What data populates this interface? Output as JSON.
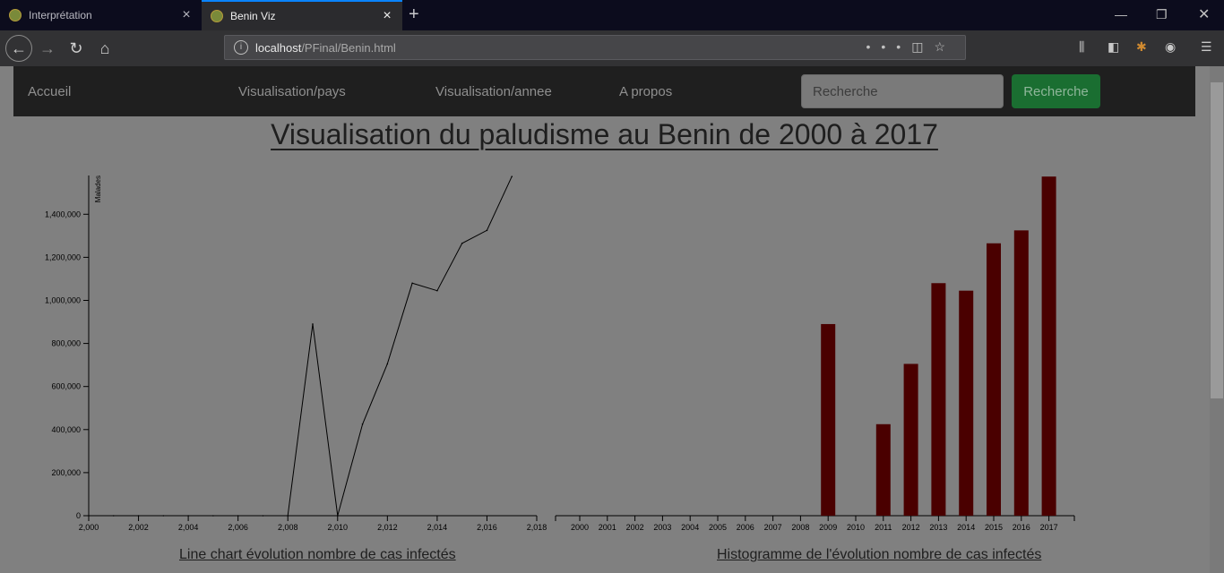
{
  "browser": {
    "tabs": [
      {
        "title": "Interprétation"
      },
      {
        "title": "Benin Viz"
      }
    ],
    "url_host": "localhost",
    "url_path": "/PFinal/Benin.html"
  },
  "nav": {
    "items": [
      "Accueil",
      "Visualisation/pays",
      "Visualisation/annee",
      "A propos"
    ],
    "search_placeholder": "Recherche",
    "search_button": "Recherche"
  },
  "page": {
    "title": "Visualisation du paludisme au Benin de 2000 à 2017"
  },
  "chart_data": [
    {
      "type": "line",
      "title": "Line chart évolution nombre de cas infectés",
      "ylabel": "Malades",
      "xlim": [
        2000,
        2018
      ],
      "ylim": [
        0,
        1580000
      ],
      "x_ticks": [
        2000,
        2002,
        2004,
        2006,
        2008,
        2010,
        2012,
        2014,
        2016,
        2018
      ],
      "x_tick_labels": [
        "2,000",
        "2,002",
        "2,004",
        "2,006",
        "2,008",
        "2,010",
        "2,012",
        "2,014",
        "2,016",
        "2,018"
      ],
      "y_ticks": [
        0,
        200000,
        400000,
        600000,
        800000,
        1000000,
        1200000,
        1400000
      ],
      "y_tick_labels": [
        "0",
        "200,000",
        "400,000",
        "600,000",
        "800,000",
        "1,000,000",
        "1,200,000",
        "1,400,000"
      ],
      "x": [
        2000,
        2001,
        2002,
        2003,
        2004,
        2005,
        2006,
        2007,
        2008,
        2009,
        2010,
        2011,
        2012,
        2013,
        2014,
        2015,
        2016,
        2017
      ],
      "values": [
        0,
        0,
        0,
        0,
        0,
        0,
        0,
        0,
        0,
        890000,
        0,
        425000,
        705000,
        1080000,
        1045000,
        1265000,
        1325000,
        1575000
      ],
      "line_color": "#000000"
    },
    {
      "type": "bar",
      "title": "Histogramme de l'évolution nombre de cas infectés",
      "categories": [
        "2000",
        "2001",
        "2002",
        "2003",
        "2004",
        "2005",
        "2006",
        "2007",
        "2008",
        "2009",
        "2010",
        "2011",
        "2012",
        "2013",
        "2014",
        "2015",
        "2016",
        "2017"
      ],
      "values": [
        0,
        0,
        0,
        0,
        0,
        0,
        0,
        0,
        0,
        890000,
        0,
        425000,
        705000,
        1080000,
        1045000,
        1265000,
        1325000,
        1575000
      ],
      "ylim": [
        0,
        1580000
      ],
      "bar_color": "#4a0000"
    }
  ]
}
